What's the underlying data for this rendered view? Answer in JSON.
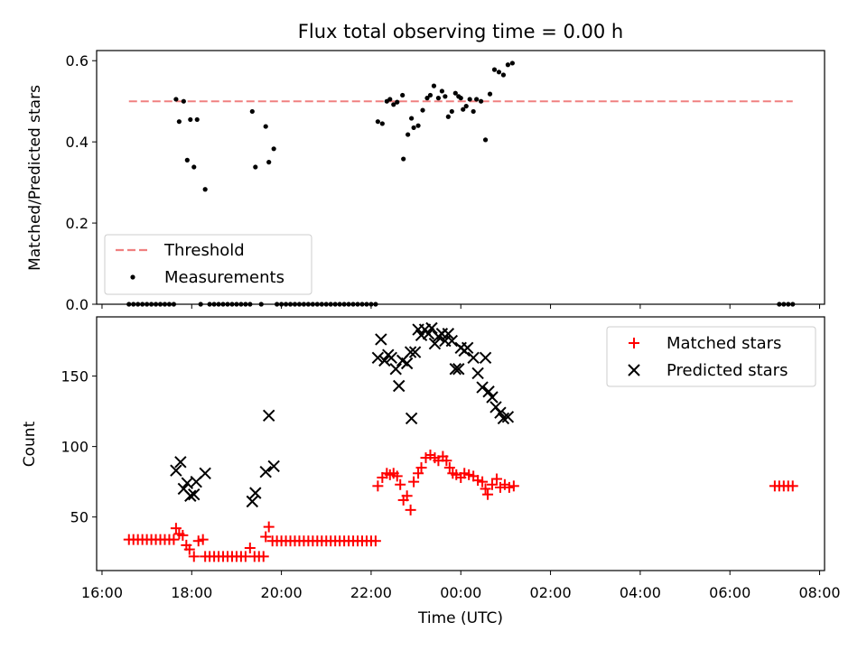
{
  "title": "Flux total observing time = 0.00 h",
  "chart_data": [
    {
      "type": "scatter",
      "ylabel": "Matched/Predicted stars",
      "xlabel": "",
      "xlim_hours": [
        15.88,
        32.11
      ],
      "ylim": [
        0,
        0.625
      ],
      "yticks": [
        "0.0",
        "0.2",
        "0.4",
        "0.6"
      ],
      "legend": {
        "placement": "lower-left"
      },
      "threshold": {
        "name": "Threshold",
        "value": 0.5,
        "x_start": 16.6,
        "x_end": 31.4,
        "color": "#f08080"
      },
      "series": [
        {
          "name": "Measurements",
          "color": "#000000",
          "marker": "dot",
          "points": [
            [
              16.6,
              0
            ],
            [
              16.7,
              0
            ],
            [
              16.8,
              0
            ],
            [
              16.9,
              0
            ],
            [
              17.0,
              0
            ],
            [
              17.1,
              0
            ],
            [
              17.2,
              0
            ],
            [
              17.3,
              0
            ],
            [
              17.4,
              0
            ],
            [
              17.5,
              0
            ],
            [
              17.6,
              0
            ],
            [
              17.65,
              0.505
            ],
            [
              17.72,
              0.45
            ],
            [
              17.82,
              0.5
            ],
            [
              17.9,
              0.355
            ],
            [
              17.97,
              0.455
            ],
            [
              18.05,
              0.338
            ],
            [
              18.12,
              0.455
            ],
            [
              18.3,
              0.283
            ],
            [
              18.2,
              0
            ],
            [
              18.4,
              0
            ],
            [
              18.5,
              0
            ],
            [
              18.6,
              0
            ],
            [
              18.7,
              0
            ],
            [
              18.8,
              0
            ],
            [
              18.9,
              0
            ],
            [
              19.0,
              0
            ],
            [
              19.1,
              0
            ],
            [
              19.2,
              0
            ],
            [
              19.3,
              0
            ],
            [
              19.35,
              0.475
            ],
            [
              19.42,
              0.338
            ],
            [
              19.55,
              0
            ],
            [
              19.65,
              0.438
            ],
            [
              19.72,
              0.35
            ],
            [
              19.83,
              0.383
            ],
            [
              19.9,
              0
            ],
            [
              20.0,
              0
            ],
            [
              20.1,
              0
            ],
            [
              20.2,
              0
            ],
            [
              20.3,
              0
            ],
            [
              20.4,
              0
            ],
            [
              20.5,
              0
            ],
            [
              20.6,
              0
            ],
            [
              20.7,
              0
            ],
            [
              20.8,
              0
            ],
            [
              20.9,
              0
            ],
            [
              21.0,
              0
            ],
            [
              21.1,
              0
            ],
            [
              21.2,
              0
            ],
            [
              21.3,
              0
            ],
            [
              21.4,
              0
            ],
            [
              21.5,
              0
            ],
            [
              21.6,
              0
            ],
            [
              21.7,
              0
            ],
            [
              21.8,
              0
            ],
            [
              21.9,
              0
            ],
            [
              22.0,
              0
            ],
            [
              22.1,
              0
            ],
            [
              22.15,
              0.45
            ],
            [
              22.25,
              0.445
            ],
            [
              22.35,
              0.5
            ],
            [
              22.42,
              0.505
            ],
            [
              22.5,
              0.492
            ],
            [
              22.58,
              0.498
            ],
            [
              22.7,
              0.515
            ],
            [
              22.72,
              0.358
            ],
            [
              22.82,
              0.418
            ],
            [
              22.9,
              0.458
            ],
            [
              22.95,
              0.435
            ],
            [
              23.05,
              0.44
            ],
            [
              23.15,
              0.478
            ],
            [
              23.25,
              0.508
            ],
            [
              23.32,
              0.515
            ],
            [
              23.4,
              0.538
            ],
            [
              23.5,
              0.508
            ],
            [
              23.58,
              0.525
            ],
            [
              23.65,
              0.512
            ],
            [
              23.72,
              0.462
            ],
            [
              23.8,
              0.475
            ],
            [
              23.88,
              0.52
            ],
            [
              23.95,
              0.512
            ],
            [
              24.0,
              0.508
            ],
            [
              24.05,
              0.48
            ],
            [
              24.12,
              0.488
            ],
            [
              24.2,
              0.505
            ],
            [
              24.28,
              0.475
            ],
            [
              24.35,
              0.505
            ],
            [
              24.45,
              0.5
            ],
            [
              24.55,
              0.405
            ],
            [
              24.65,
              0.518
            ],
            [
              24.75,
              0.578
            ],
            [
              24.85,
              0.572
            ],
            [
              24.95,
              0.565
            ],
            [
              25.05,
              0.59
            ],
            [
              25.15,
              0.594
            ],
            [
              31.1,
              0
            ],
            [
              31.2,
              0
            ],
            [
              31.3,
              0
            ],
            [
              31.4,
              0
            ]
          ]
        }
      ]
    },
    {
      "type": "scatter",
      "ylabel": "Count",
      "xlabel": "Time (UTC)",
      "xlim_hours": [
        15.88,
        32.11
      ],
      "ylim": [
        12,
        192
      ],
      "yticks": [
        "50",
        "100",
        "150"
      ],
      "xticks": [
        "16:00",
        "18:00",
        "20:00",
        "22:00",
        "00:00",
        "02:00",
        "04:00",
        "06:00",
        "08:00"
      ],
      "legend": {
        "placement": "upper-right"
      },
      "series": [
        {
          "name": "Matched stars",
          "color": "#ff0000",
          "marker": "plus",
          "points": [
            [
              16.6,
              34
            ],
            [
              16.7,
              34
            ],
            [
              16.8,
              34
            ],
            [
              16.9,
              34
            ],
            [
              17.0,
              34
            ],
            [
              17.1,
              34
            ],
            [
              17.2,
              34
            ],
            [
              17.3,
              34
            ],
            [
              17.4,
              34
            ],
            [
              17.5,
              34
            ],
            [
              17.6,
              34
            ],
            [
              17.65,
              42
            ],
            [
              17.72,
              38
            ],
            [
              17.8,
              37
            ],
            [
              17.88,
              30
            ],
            [
              17.95,
              27
            ],
            [
              18.05,
              22
            ],
            [
              18.15,
              33
            ],
            [
              18.25,
              34
            ],
            [
              18.3,
              22
            ],
            [
              18.4,
              22
            ],
            [
              18.5,
              22
            ],
            [
              18.6,
              22
            ],
            [
              18.7,
              22
            ],
            [
              18.8,
              22
            ],
            [
              18.9,
              22
            ],
            [
              19.0,
              22
            ],
            [
              19.1,
              22
            ],
            [
              19.2,
              22
            ],
            [
              19.3,
              28
            ],
            [
              19.4,
              22
            ],
            [
              19.5,
              22
            ],
            [
              19.6,
              22
            ],
            [
              19.65,
              36
            ],
            [
              19.72,
              43
            ],
            [
              19.8,
              33
            ],
            [
              19.9,
              33
            ],
            [
              20.0,
              33
            ],
            [
              20.1,
              33
            ],
            [
              20.2,
              33
            ],
            [
              20.3,
              33
            ],
            [
              20.4,
              33
            ],
            [
              20.5,
              33
            ],
            [
              20.6,
              33
            ],
            [
              20.7,
              33
            ],
            [
              20.8,
              33
            ],
            [
              20.9,
              33
            ],
            [
              21.0,
              33
            ],
            [
              21.1,
              33
            ],
            [
              21.2,
              33
            ],
            [
              21.3,
              33
            ],
            [
              21.4,
              33
            ],
            [
              21.5,
              33
            ],
            [
              21.6,
              33
            ],
            [
              21.7,
              33
            ],
            [
              21.8,
              33
            ],
            [
              21.9,
              33
            ],
            [
              22.0,
              33
            ],
            [
              22.1,
              33
            ],
            [
              22.15,
              72
            ],
            [
              22.25,
              78
            ],
            [
              22.35,
              81
            ],
            [
              22.42,
              80
            ],
            [
              22.5,
              81
            ],
            [
              22.58,
              79
            ],
            [
              22.65,
              73
            ],
            [
              22.72,
              62
            ],
            [
              22.8,
              65
            ],
            [
              22.88,
              55
            ],
            [
              22.95,
              75
            ],
            [
              23.05,
              81
            ],
            [
              23.12,
              85
            ],
            [
              23.22,
              92
            ],
            [
              23.32,
              94
            ],
            [
              23.42,
              92
            ],
            [
              23.5,
              90
            ],
            [
              23.6,
              93
            ],
            [
              23.68,
              90
            ],
            [
              23.75,
              85
            ],
            [
              23.82,
              81
            ],
            [
              23.9,
              80
            ],
            [
              24.0,
              78
            ],
            [
              24.08,
              81
            ],
            [
              24.18,
              80
            ],
            [
              24.28,
              79
            ],
            [
              24.38,
              76
            ],
            [
              24.48,
              75
            ],
            [
              24.55,
              70
            ],
            [
              24.6,
              66
            ],
            [
              24.7,
              73
            ],
            [
              24.8,
              77
            ],
            [
              24.88,
              71
            ],
            [
              24.98,
              73
            ],
            [
              25.08,
              71
            ],
            [
              25.18,
              72
            ],
            [
              31.0,
              72
            ],
            [
              31.1,
              72
            ],
            [
              31.2,
              72
            ],
            [
              31.3,
              72
            ],
            [
              31.4,
              72
            ]
          ]
        },
        {
          "name": "Predicted stars",
          "color": "#000000",
          "marker": "x",
          "points": [
            [
              17.65,
              83
            ],
            [
              17.75,
              89
            ],
            [
              17.82,
              70
            ],
            [
              17.9,
              74
            ],
            [
              17.97,
              65
            ],
            [
              18.05,
              66
            ],
            [
              18.1,
              75
            ],
            [
              18.3,
              81
            ],
            [
              19.35,
              61
            ],
            [
              19.42,
              67
            ],
            [
              19.65,
              82
            ],
            [
              19.72,
              122
            ],
            [
              19.83,
              86
            ],
            [
              22.15,
              163
            ],
            [
              22.22,
              176
            ],
            [
              22.3,
              161
            ],
            [
              22.38,
              165
            ],
            [
              22.45,
              163
            ],
            [
              22.55,
              155
            ],
            [
              22.62,
              143
            ],
            [
              22.7,
              161
            ],
            [
              22.8,
              159
            ],
            [
              22.88,
              167
            ],
            [
              22.9,
              120
            ],
            [
              22.98,
              167
            ],
            [
              23.05,
              183
            ],
            [
              23.12,
              179
            ],
            [
              23.2,
              183
            ],
            [
              23.28,
              180
            ],
            [
              23.35,
              184
            ],
            [
              23.42,
              173
            ],
            [
              23.5,
              178
            ],
            [
              23.58,
              180
            ],
            [
              23.65,
              175
            ],
            [
              23.72,
              180
            ],
            [
              23.8,
              175
            ],
            [
              23.88,
              155
            ],
            [
              23.95,
              155
            ],
            [
              24.0,
              170
            ],
            [
              24.08,
              168
            ],
            [
              24.15,
              170
            ],
            [
              24.28,
              163
            ],
            [
              24.38,
              152
            ],
            [
              24.48,
              142
            ],
            [
              24.55,
              163
            ],
            [
              24.62,
              139
            ],
            [
              24.7,
              135
            ],
            [
              24.78,
              128
            ],
            [
              24.88,
              124
            ],
            [
              24.95,
              120
            ],
            [
              25.05,
              121
            ]
          ]
        }
      ]
    }
  ]
}
